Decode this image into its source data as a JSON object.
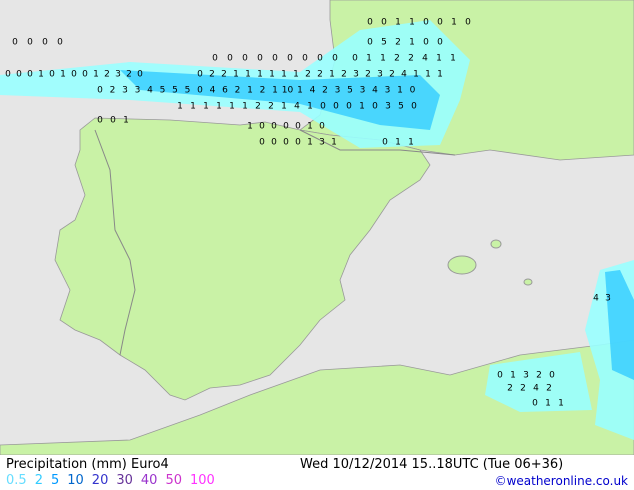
{
  "title": "Precipitation (mm) Euro4",
  "valid_time": "Wed 10/12/2014 15..18UTC  (Tue 06+36)",
  "credit": "©weatheronline.co.uk",
  "legend": [
    {
      "label": "0.5",
      "color": "#66ddff"
    },
    {
      "label": "2",
      "color": "#33ccff"
    },
    {
      "label": "5",
      "color": "#0099ff"
    },
    {
      "label": "10",
      "color": "#0066cc"
    },
    {
      "label": "20",
      "color": "#3333cc"
    },
    {
      "label": "30",
      "color": "#663399"
    },
    {
      "label": "40",
      "color": "#9933cc"
    },
    {
      "label": "50",
      "color": "#cc33cc"
    },
    {
      "label": "100",
      "color": "#ff33ff"
    }
  ],
  "map_labels": [
    [
      "0",
      "0",
      "1",
      "1",
      "0",
      "0",
      "1",
      "0"
    ],
    [
      "0",
      "0",
      "0",
      "0"
    ],
    [
      "0",
      "5",
      "2",
      "1",
      "0",
      "0"
    ],
    [
      "0",
      "0",
      "0",
      "0",
      "0",
      "0",
      "0",
      "0",
      "0"
    ],
    [
      "0",
      "1",
      "1",
      "2",
      "2",
      "4",
      "1",
      "1"
    ],
    [
      "0",
      "0",
      "0",
      "1",
      "0",
      "1",
      "0",
      "0",
      "1",
      "2",
      "3",
      "2",
      "0"
    ],
    [
      "0",
      "2",
      "2",
      "1",
      "1",
      "1",
      "1",
      "1",
      "1",
      "2",
      "2",
      "1",
      "2",
      "3",
      "2",
      "3",
      "2",
      "4",
      "1",
      "1",
      "1"
    ],
    [
      "0",
      "2",
      "3",
      "3",
      "4",
      "5",
      "5",
      "5",
      "0",
      "4",
      "6",
      "2",
      "1",
      "2",
      "1",
      "10",
      "1",
      "4",
      "2",
      "3",
      "5",
      "3",
      "4",
      "3",
      "1",
      "0"
    ],
    [
      "1",
      "1",
      "1",
      "1",
      "1",
      "1",
      "2",
      "2",
      "1",
      "4",
      "1",
      "0",
      "0",
      "0",
      "1",
      "0",
      "3",
      "5",
      "0"
    ],
    [
      "0",
      "0",
      "1"
    ],
    [
      "1",
      "0",
      "0",
      "0",
      "0",
      "1",
      "0"
    ],
    [
      "0",
      "0",
      "0",
      "0",
      "1",
      "3",
      "1"
    ],
    [
      "0",
      "1",
      "1"
    ],
    [
      "0",
      "1",
      "3",
      "2",
      "0"
    ],
    [
      "2",
      "2",
      "4",
      "2"
    ],
    [
      "0",
      "1",
      "1"
    ],
    [
      "4",
      "3"
    ]
  ]
}
